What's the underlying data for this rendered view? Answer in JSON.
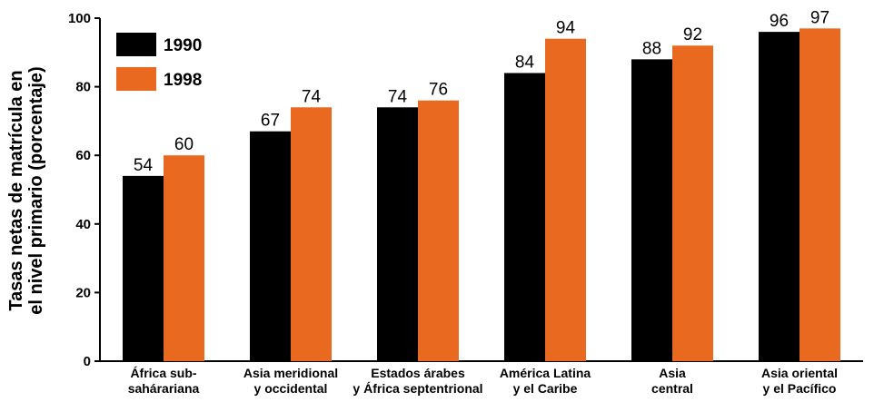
{
  "chart_data": {
    "type": "bar",
    "ylabel_lines": [
      "Tasas netas de matrícula en",
      "el nivel primario (porcentaje)"
    ],
    "ylim": [
      0,
      100
    ],
    "yticks": [
      "0",
      "20",
      "40",
      "60",
      "80",
      "100"
    ],
    "grid": false,
    "legend_position": "top-left",
    "categories": [
      {
        "lines": [
          "África sub-",
          "sahárariana"
        ]
      },
      {
        "lines": [
          "Asia meridional",
          "y occidental"
        ]
      },
      {
        "lines": [
          "Estados árabes",
          "y África septentrional"
        ]
      },
      {
        "lines": [
          "América Latina",
          "y el Caribe"
        ]
      },
      {
        "lines": [
          "Asia",
          "central"
        ]
      },
      {
        "lines": [
          "Asia oriental",
          "y el Pacífico"
        ]
      }
    ],
    "series": [
      {
        "name": "1990",
        "color": "#000000",
        "values": [
          54,
          67,
          74,
          84,
          88,
          96
        ]
      },
      {
        "name": "1998",
        "color": "#e8691f",
        "values": [
          60,
          74,
          76,
          94,
          92,
          97
        ]
      }
    ]
  }
}
